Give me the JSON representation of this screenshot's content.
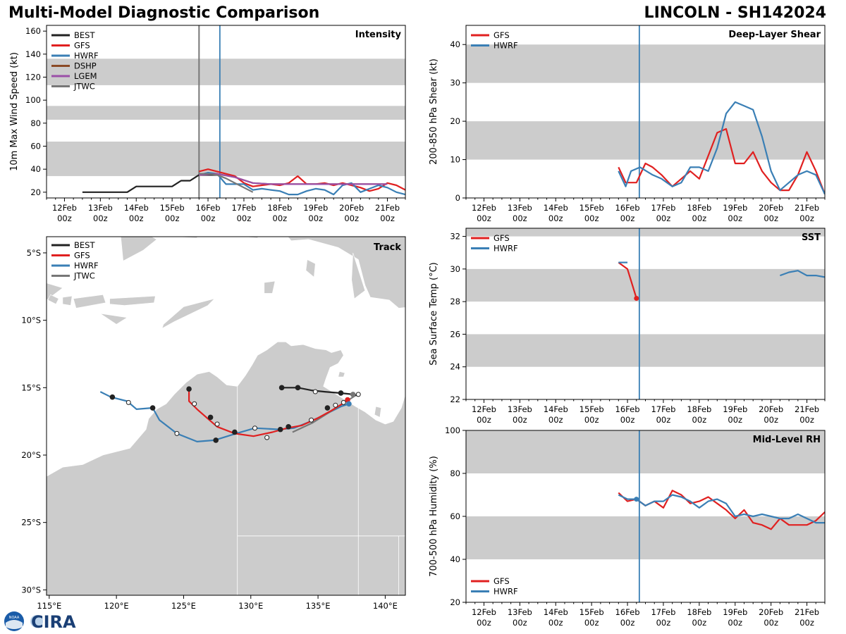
{
  "header": {
    "title": "Multi-Model Diagnostic Comparison",
    "storm": "LINCOLN - SH142024"
  },
  "colors": {
    "BEST": "#222222",
    "GFS": "#e02020",
    "HWRF": "#3a7fb5",
    "DSHP": "#8b4a25",
    "LGEM": "#9b4fa8",
    "JTWC": "#777777",
    "band": "#cccccc",
    "land": "#cccccc",
    "vline": "#3a7fb5",
    "vline_gray": "#777777"
  },
  "time_axis": {
    "labels": [
      "12Feb\n00z",
      "13Feb\n00z",
      "14Feb\n00z",
      "15Feb\n00z",
      "16Feb\n00z",
      "17Feb\n00z",
      "18Feb\n00z",
      "19Feb\n00z",
      "20Feb\n00z",
      "21Feb\n00z"
    ],
    "xlim": [
      -0.5,
      9.5
    ],
    "init_time": 4.33,
    "best_end": 3.75
  },
  "chart_data": [
    {
      "id": "intensity",
      "type": "line",
      "title": "Intensity",
      "ylabel": "10m Max Wind Speed (kt)",
      "ylim": [
        15,
        165
      ],
      "yticks": [
        20,
        40,
        60,
        80,
        100,
        120,
        140,
        160
      ],
      "bands": [
        [
          34,
          64
        ],
        [
          83,
          95
        ],
        [
          113,
          136
        ]
      ],
      "legend": [
        "BEST",
        "GFS",
        "HWRF",
        "DSHP",
        "LGEM",
        "JTWC"
      ],
      "series": [
        {
          "name": "BEST",
          "x": [
            0.5,
            0.75,
            1.0,
            1.25,
            1.5,
            1.75,
            2.0,
            2.25,
            2.5,
            2.75,
            3.0,
            3.25,
            3.5,
            3.75,
            4.0,
            4.25
          ],
          "y": [
            20,
            20,
            20,
            20,
            20,
            20,
            25,
            25,
            25,
            25,
            25,
            30,
            30,
            35,
            35,
            35
          ]
        },
        {
          "name": "GFS",
          "x": [
            3.75,
            4.0,
            4.25,
            4.5,
            4.75,
            5.0,
            5.25,
            5.5,
            5.75,
            6.0,
            6.25,
            6.5,
            6.75,
            7.0,
            7.25,
            7.5,
            7.75,
            8.0,
            8.25,
            8.5,
            8.75,
            9.0,
            9.25,
            9.5
          ],
          "y": [
            38,
            40,
            38,
            36,
            34,
            28,
            25,
            26,
            27,
            26,
            28,
            34,
            27,
            27,
            28,
            26,
            28,
            26,
            24,
            21,
            23,
            28,
            26,
            22
          ]
        },
        {
          "name": "HWRF",
          "x": [
            3.75,
            4.0,
            4.25,
            4.5,
            4.75,
            5.0,
            5.25,
            5.5,
            5.75,
            6.0,
            6.25,
            6.5,
            6.75,
            7.0,
            7.25,
            7.5,
            7.75,
            8.0,
            8.25,
            8.5,
            8.75,
            9.0,
            9.25,
            9.5
          ],
          "y": [
            35,
            37,
            36,
            27,
            27,
            27,
            22,
            23,
            22,
            21,
            18,
            18,
            21,
            23,
            22,
            18,
            26,
            28,
            20,
            23,
            26,
            24,
            20,
            18
          ]
        },
        {
          "name": "DSHP",
          "x": [
            3.75,
            4.25,
            4.75,
            5.25,
            5.75,
            6.25,
            6.75,
            7.25,
            7.75,
            8.25,
            8.75,
            9.0
          ],
          "y": [
            35,
            36,
            33,
            28,
            27,
            27,
            27,
            27,
            27,
            27,
            27,
            27
          ]
        },
        {
          "name": "LGEM",
          "x": [
            3.75,
            4.25,
            4.75,
            5.25,
            5.75,
            6.25,
            6.75,
            7.25,
            7.75,
            8.25,
            8.75,
            9.0
          ],
          "y": [
            35,
            36,
            33,
            28,
            27,
            27,
            27,
            27,
            27,
            27,
            27,
            27
          ]
        },
        {
          "name": "JTWC",
          "x": [
            3.75,
            4.0,
            4.25,
            4.5,
            4.75,
            5.0,
            5.25
          ],
          "y": [
            36,
            36,
            35,
            32,
            28,
            24,
            20
          ]
        }
      ]
    },
    {
      "id": "shear",
      "type": "line",
      "title": "Deep-Layer Shear",
      "ylabel": "200-850 hPa Shear (kt)",
      "ylim": [
        0,
        45
      ],
      "yticks": [
        0,
        10,
        20,
        30,
        40
      ],
      "bands": [
        [
          10,
          20
        ],
        [
          30,
          40
        ]
      ],
      "legend": [
        "GFS",
        "HWRF"
      ],
      "series": [
        {
          "name": "GFS",
          "x": [
            3.75,
            3.95,
            4.25,
            4.5,
            4.7,
            4.95,
            5.25,
            5.5,
            5.75,
            6.0,
            6.25,
            6.5,
            6.75,
            7.0,
            7.25,
            7.5,
            7.75,
            8.0,
            8.25,
            8.5,
            8.75,
            9.0,
            9.25,
            9.5
          ],
          "y": [
            8,
            4,
            4,
            9,
            8,
            6,
            3,
            5,
            7,
            5,
            11,
            17,
            18,
            9,
            9,
            12,
            7,
            4,
            2,
            2,
            6,
            12,
            7,
            1
          ]
        },
        {
          "name": "HWRF",
          "x": [
            3.75,
            3.95,
            4.1,
            4.35,
            4.7,
            4.95,
            5.25,
            5.5,
            5.75,
            6.0,
            6.25,
            6.5,
            6.75,
            7.0,
            7.25,
            7.5,
            7.75,
            8.0,
            8.25,
            8.5,
            8.75,
            9.0,
            9.25,
            9.5
          ],
          "y": [
            7,
            3,
            7,
            8,
            6,
            5,
            3,
            4,
            8,
            8,
            7,
            13,
            22,
            25,
            24,
            23,
            16,
            7,
            2,
            4,
            6,
            7,
            6,
            1
          ]
        }
      ]
    },
    {
      "id": "sst",
      "type": "line",
      "title": "SST",
      "ylabel": "Sea Surface Temp (°C)",
      "ylim": [
        22,
        32.5
      ],
      "yticks": [
        22,
        24,
        26,
        28,
        30,
        32
      ],
      "bands": [
        [
          24,
          26
        ],
        [
          28,
          30
        ],
        [
          32,
          33
        ]
      ],
      "legend": [
        "GFS",
        "HWRF"
      ],
      "series": [
        {
          "name": "GFS",
          "x": [
            3.75,
            4.0,
            4.25
          ],
          "y": [
            30.4,
            30.0,
            28.2
          ]
        },
        {
          "name": "HWRF",
          "x": [
            3.75,
            4.0
          ],
          "y": [
            30.4,
            30.4
          ]
        },
        {
          "name": "HWRF",
          "x": [
            8.25,
            8.5,
            8.75,
            9.0,
            9.25,
            9.5
          ],
          "y": [
            29.6,
            29.8,
            29.9,
            29.6,
            29.6,
            29.5
          ]
        }
      ],
      "markers": [
        {
          "name": "GFS",
          "x": 4.25,
          "y": 28.2
        }
      ]
    },
    {
      "id": "rh",
      "type": "line",
      "title": "Mid-Level RH",
      "ylabel": "700-500 hPa Humidity (%)",
      "ylim": [
        20,
        100
      ],
      "yticks": [
        20,
        40,
        60,
        80,
        100
      ],
      "bands": [
        [
          40,
          60
        ],
        [
          80,
          100
        ]
      ],
      "legend": [
        "GFS",
        "HWRF"
      ],
      "series": [
        {
          "name": "GFS",
          "x": [
            3.75,
            4.0,
            4.25,
            4.5,
            4.75,
            5.0,
            5.25,
            5.5,
            5.75,
            6.0,
            6.25,
            6.5,
            6.75,
            7.0,
            7.25,
            7.5,
            7.75,
            8.0,
            8.25,
            8.5,
            8.75,
            9.0,
            9.25,
            9.5
          ],
          "y": [
            71,
            67,
            68,
            65,
            67,
            64,
            72,
            70,
            66,
            67,
            69,
            66,
            63,
            59,
            63,
            57,
            56,
            54,
            59,
            56,
            56,
            56,
            58,
            62
          ]
        },
        {
          "name": "HWRF",
          "x": [
            3.75,
            4.0,
            4.25,
            4.5,
            4.75,
            5.0,
            5.25,
            5.5,
            5.75,
            6.0,
            6.25,
            6.5,
            6.75,
            7.0,
            7.25,
            7.5,
            7.75,
            8.0,
            8.25,
            8.5,
            8.75,
            9.0,
            9.25,
            9.5
          ],
          "y": [
            70,
            68,
            68,
            65,
            67,
            67,
            70,
            69,
            67,
            64,
            67,
            68,
            66,
            60,
            61,
            60,
            61,
            60,
            59,
            59,
            61,
            59,
            57,
            57
          ]
        }
      ],
      "markers": [
        {
          "name": "HWRF",
          "x": 4.25,
          "y": 68
        }
      ]
    },
    {
      "id": "track",
      "type": "line",
      "title": "Track",
      "xlim": [
        114.8,
        141.5
      ],
      "ylim": [
        -30.4,
        -3.8
      ],
      "xticks": [
        115,
        120,
        125,
        130,
        135,
        140
      ],
      "xticklabels": [
        "115°E",
        "120°E",
        "125°E",
        "130°E",
        "135°E",
        "140°E"
      ],
      "yticks": [
        -5,
        -10,
        -15,
        -20,
        -25,
        -30
      ],
      "yticklabels": [
        "5°S",
        "10°S",
        "15°S",
        "20°S",
        "25°S",
        "30°S"
      ],
      "legend": [
        "BEST",
        "GFS",
        "HWRF",
        "JTWC"
      ],
      "series": [
        {
          "name": "BEST",
          "x": [
            132.3,
            133.5,
            134.5,
            135.5,
            136.7,
            137.6,
            138.0,
            137.9
          ],
          "y": [
            -15.0,
            -15.0,
            -15.2,
            -15.3,
            -15.4,
            -15.5,
            -15.6,
            -15.6
          ]
        },
        {
          "name": "GFS",
          "x": [
            137.2,
            136.8,
            136.0,
            134.9,
            133.8,
            132.7,
            131.6,
            130.2,
            128.8,
            127.5,
            126.8,
            126.0,
            125.4,
            125.4
          ],
          "y": [
            -15.9,
            -16.2,
            -16.7,
            -17.3,
            -17.8,
            -18.0,
            -18.3,
            -18.6,
            -18.4,
            -17.9,
            -17.3,
            -16.6,
            -16.0,
            -15.1
          ]
        },
        {
          "name": "HWRF",
          "x": [
            137.3,
            136.7,
            135.9,
            135.1,
            134.2,
            133.2,
            132.1,
            130.3,
            128.9,
            127.3,
            126.0,
            124.5,
            123.2,
            122.7,
            121.5,
            120.8,
            119.6,
            118.8
          ],
          "y": [
            -16.2,
            -16.4,
            -16.8,
            -17.2,
            -17.6,
            -18.0,
            -18.1,
            -18.0,
            -18.4,
            -18.9,
            -19.0,
            -18.4,
            -17.4,
            -16.5,
            -16.6,
            -16.0,
            -15.7,
            -15.3
          ]
        },
        {
          "name": "JTWC",
          "x": [
            137.9,
            137.3,
            136.2,
            134.6,
            133.1
          ],
          "y": [
            -15.5,
            -15.9,
            -16.6,
            -17.6,
            -18.3
          ]
        }
      ],
      "markers": [
        {
          "x": 132.3,
          "y": -15.0,
          "fill": "#222222"
        },
        {
          "x": 133.5,
          "y": -15.0,
          "fill": "#222222"
        },
        {
          "x": 134.8,
          "y": -15.3,
          "fill": "#ffffff"
        },
        {
          "x": 136.7,
          "y": -15.4,
          "fill": "#222222"
        },
        {
          "x": 138.0,
          "y": -15.5,
          "fill": "#ffffff"
        },
        {
          "x": 137.2,
          "y": -15.9,
          "fill": "#e02020"
        },
        {
          "x": 135.7,
          "y": -16.5,
          "fill": "#222222"
        },
        {
          "x": 134.5,
          "y": -17.4,
          "fill": "#ffffff"
        },
        {
          "x": 132.8,
          "y": -17.9,
          "fill": "#222222"
        },
        {
          "x": 132.2,
          "y": -18.1,
          "fill": "#222222"
        },
        {
          "x": 131.2,
          "y": -18.7,
          "fill": "#ffffff"
        },
        {
          "x": 130.3,
          "y": -18.0,
          "fill": "#ffffff"
        },
        {
          "x": 128.8,
          "y": -18.3,
          "fill": "#222222"
        },
        {
          "x": 127.5,
          "y": -17.7,
          "fill": "#ffffff"
        },
        {
          "x": 127.0,
          "y": -17.2,
          "fill": "#222222"
        },
        {
          "x": 125.8,
          "y": -16.2,
          "fill": "#ffffff"
        },
        {
          "x": 125.4,
          "y": -15.1,
          "fill": "#222222"
        },
        {
          "x": 127.4,
          "y": -18.9,
          "fill": "#222222"
        },
        {
          "x": 124.5,
          "y": -18.4,
          "fill": "#ffffff"
        },
        {
          "x": 122.7,
          "y": -16.5,
          "fill": "#222222"
        },
        {
          "x": 120.9,
          "y": -16.1,
          "fill": "#ffffff"
        },
        {
          "x": 119.7,
          "y": -15.7,
          "fill": "#222222"
        },
        {
          "x": 136.3,
          "y": -16.3,
          "fill": "#ffffff"
        },
        {
          "x": 136.9,
          "y": -16.1,
          "fill": "#ffffff"
        },
        {
          "x": 137.6,
          "y": -15.5,
          "fill": "#777777"
        },
        {
          "x": 137.3,
          "y": -16.2,
          "fill": "#3a7fb5"
        }
      ]
    }
  ],
  "logo": {
    "text": "CIRA",
    "badge": "NOAA"
  }
}
